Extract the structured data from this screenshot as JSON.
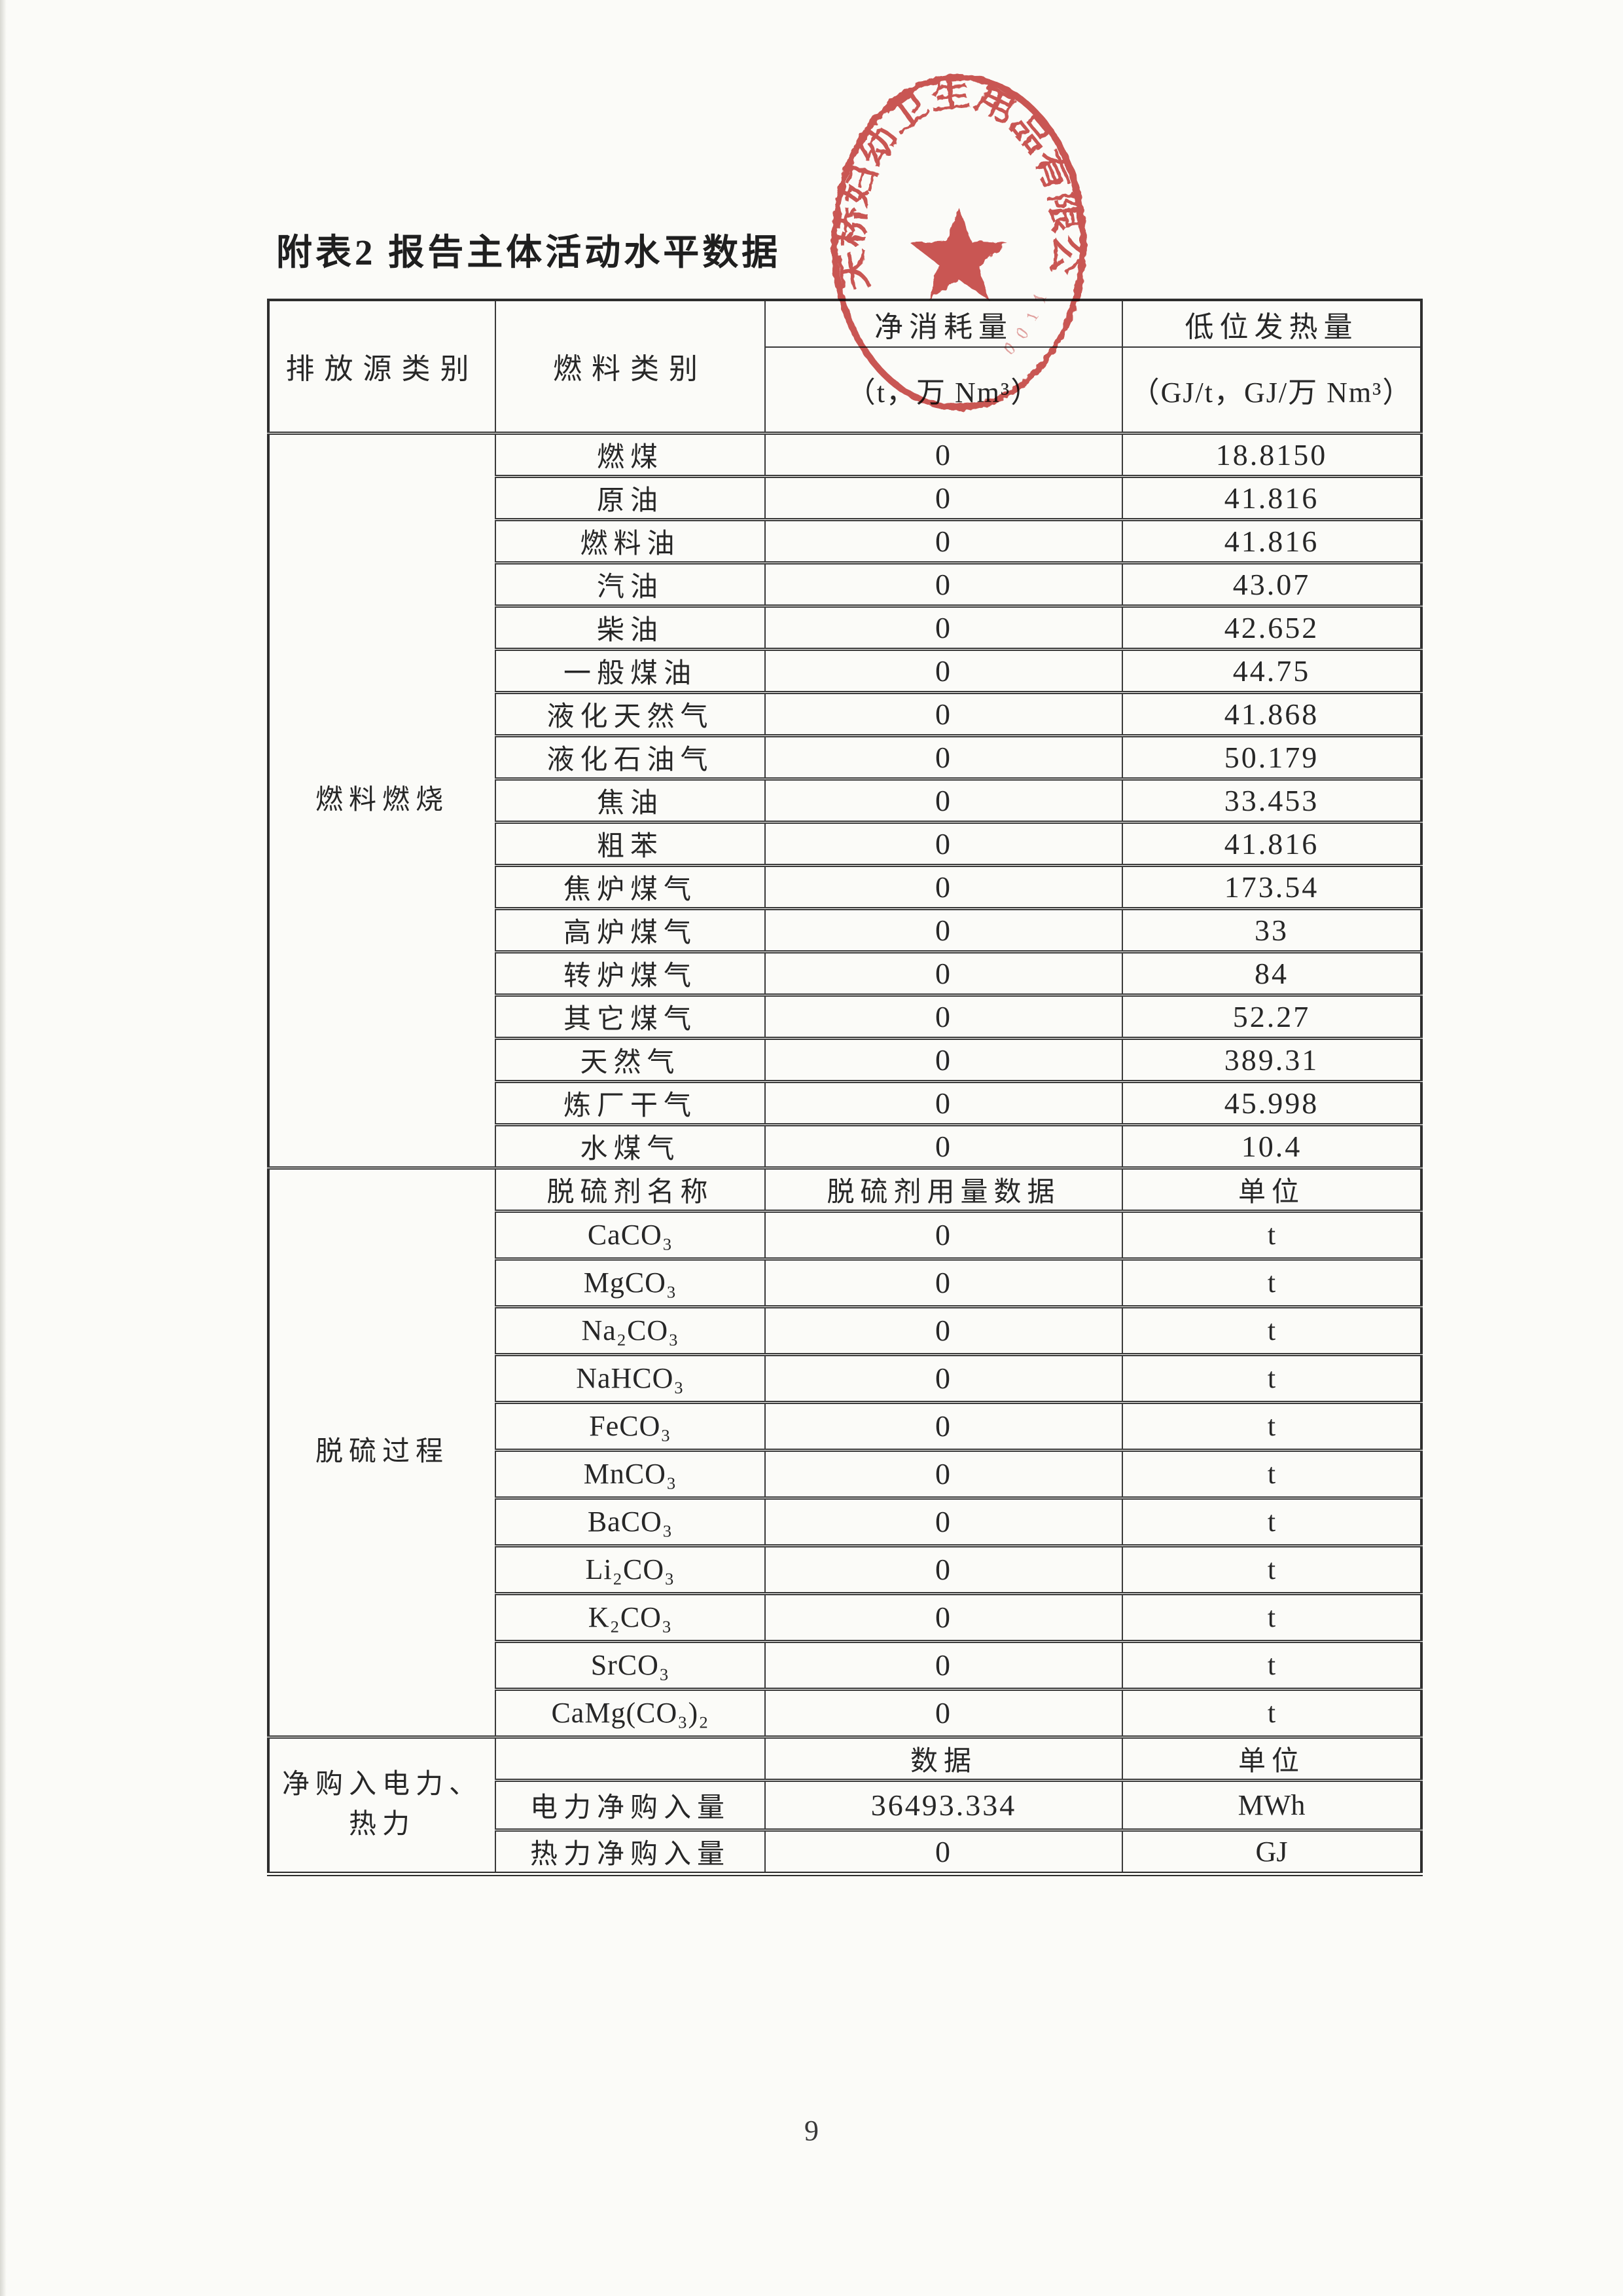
{
  "page": {
    "title": "附表2 报告主体活动水平数据",
    "page_number": "9"
  },
  "stamp": {
    "company_text": "天桥妇幼卫生用品有限公司",
    "serial_text": "0 0 1 1",
    "color": "#c6403e"
  },
  "table": {
    "header": {
      "col1": "排放源类别",
      "col2": "燃料类别",
      "col3_line1": "净消耗量",
      "col3_line2": "（t，万 Nm³）",
      "col4_line1": "低位发热量",
      "col4_line2": "（GJ/t，GJ/万 Nm³）"
    },
    "sections": [
      {
        "category": "燃料燃烧",
        "rows": [
          {
            "label": "燃煤",
            "consumption": "0",
            "heating_value": "18.8150"
          },
          {
            "label": "原油",
            "consumption": "0",
            "heating_value": "41.816"
          },
          {
            "label": "燃料油",
            "consumption": "0",
            "heating_value": "41.816"
          },
          {
            "label": "汽油",
            "consumption": "0",
            "heating_value": "43.07"
          },
          {
            "label": "柴油",
            "consumption": "0",
            "heating_value": "42.652"
          },
          {
            "label": "一般煤油",
            "consumption": "0",
            "heating_value": "44.75"
          },
          {
            "label": "液化天然气",
            "consumption": "0",
            "heating_value": "41.868"
          },
          {
            "label": "液化石油气",
            "consumption": "0",
            "heating_value": "50.179"
          },
          {
            "label": "焦油",
            "consumption": "0",
            "heating_value": "33.453"
          },
          {
            "label": "粗苯",
            "consumption": "0",
            "heating_value": "41.816"
          },
          {
            "label": "焦炉煤气",
            "consumption": "0",
            "heating_value": "173.54"
          },
          {
            "label": "高炉煤气",
            "consumption": "0",
            "heating_value": "33"
          },
          {
            "label": "转炉煤气",
            "consumption": "0",
            "heating_value": "84"
          },
          {
            "label": "其它煤气",
            "consumption": "0",
            "heating_value": "52.27"
          },
          {
            "label": "天然气",
            "consumption": "0",
            "heating_value": "389.31"
          },
          {
            "label": "炼厂干气",
            "consumption": "0",
            "heating_value": "45.998"
          },
          {
            "label": "水煤气",
            "consumption": "0",
            "heating_value": "10.4"
          }
        ]
      },
      {
        "category": "脱硫过程",
        "subheader": {
          "name": "脱硫剂名称",
          "data": "脱硫剂用量数据",
          "unit": "单位"
        },
        "rows": [
          {
            "label": "CaCO₃",
            "value": "0",
            "unit": "t"
          },
          {
            "label": "MgCO₃",
            "value": "0",
            "unit": "t"
          },
          {
            "label": "Na₂CO₃",
            "value": "0",
            "unit": "t"
          },
          {
            "label": "NaHCO₃",
            "value": "0",
            "unit": "t"
          },
          {
            "label": "FeCO₃",
            "value": "0",
            "unit": "t"
          },
          {
            "label": "MnCO₃",
            "value": "0",
            "unit": "t"
          },
          {
            "label": "BaCO₃",
            "value": "0",
            "unit": "t"
          },
          {
            "label": "Li₂CO₃",
            "value": "0",
            "unit": "t"
          },
          {
            "label": "K₂CO₃",
            "value": "0",
            "unit": "t"
          },
          {
            "label": "SrCO₃",
            "value": "0",
            "unit": "t"
          },
          {
            "label": "CaMg(CO₃)₂",
            "value": "0",
            "unit": "t"
          }
        ]
      },
      {
        "category": "净购入电力、热力",
        "subheader": {
          "name": "",
          "data": "数据",
          "unit": "单位"
        },
        "rows": [
          {
            "label": "电力净购入量",
            "value": "36493.334",
            "unit": "MWh"
          },
          {
            "label": "热力净购入量",
            "value": "0",
            "unit": "GJ"
          }
        ]
      }
    ]
  }
}
